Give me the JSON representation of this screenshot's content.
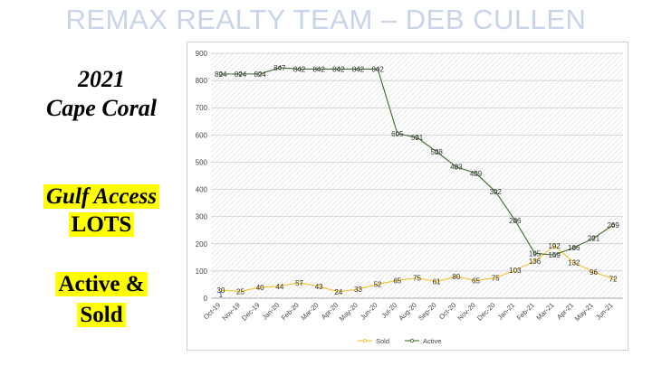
{
  "banner_title": "REMAX REALTY TEAM – DEB CULLEN",
  "side_text": {
    "year": "2021",
    "place": "Cape Coral",
    "gulf": "Gulf Access",
    "lots": "LOTS",
    "active": "Active &",
    "sold": "Sold"
  },
  "colors": {
    "banner": "#c9d3ea",
    "highlight": "#ffff00",
    "sold_line": "#f2c12e",
    "active_line": "#3f6b2a"
  },
  "chart_data": {
    "type": "line",
    "categories": [
      "Oct-19",
      "Nov-19",
      "Dec-19",
      "Jan-20",
      "Feb-20",
      "Mar-20",
      "Apr-20",
      "May-20",
      "Jun-20",
      "Jul-20",
      "Aug-20",
      "Sep-20",
      "Oct-20",
      "Nov-20",
      "Dec-20",
      "Jan-21",
      "Feb-21",
      "Mar-21",
      "Apr-21",
      "May-21",
      "Jun-21"
    ],
    "series": [
      {
        "name": "Sold",
        "values": [
          30,
          25,
          40,
          44,
          57,
          43,
          24,
          33,
          52,
          65,
          75,
          61,
          80,
          65,
          75,
          103,
          136,
          192,
          132,
          96,
          72
        ]
      },
      {
        "name": "Active",
        "values": [
          824,
          824,
          824,
          847,
          842,
          842,
          842,
          842,
          842,
          605,
          591,
          538,
          483,
          459,
          392,
          286,
          165,
          159,
          186,
          221,
          269
        ]
      }
    ],
    "ylim": [
      0,
      900
    ],
    "yticks": [
      0,
      100,
      200,
      300,
      400,
      500,
      600,
      700,
      800,
      900
    ],
    "grid": true,
    "legend": "bottom",
    "data_labels": true,
    "first_active_point_label": "1"
  }
}
